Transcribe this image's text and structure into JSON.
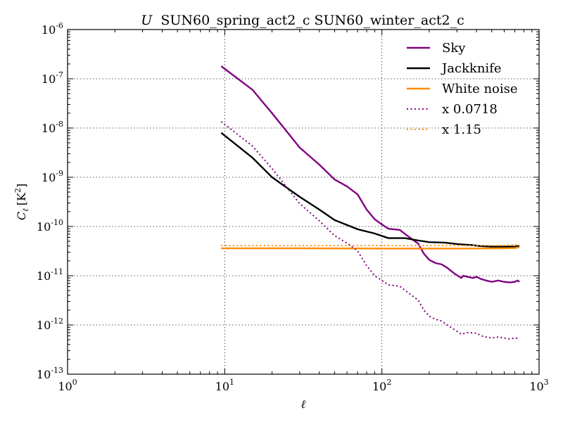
{
  "chart_data": {
    "type": "line",
    "title_var": "U",
    "title": "SUN60_spring_act2_c SUN60_winter_act2_c",
    "xlabel": "ℓ",
    "ylabel": "C",
    "ylabel_sub": "ℓ",
    "ylabel_unit": "[K",
    "ylabel_unit_sup": "2",
    "ylabel_unit_close": "]",
    "xscale": "log",
    "yscale": "log",
    "xlim": [
      1,
      1000
    ],
    "ylim": [
      1e-13,
      1e-06
    ],
    "grid": true,
    "legend_position": "top-right",
    "x_ticks": [
      {
        "value": 1,
        "base": "10",
        "exp": "0"
      },
      {
        "value": 10,
        "base": "10",
        "exp": "1"
      },
      {
        "value": 100,
        "base": "10",
        "exp": "2"
      },
      {
        "value": 1000,
        "base": "10",
        "exp": "3"
      }
    ],
    "y_ticks": [
      {
        "value": 1e-13,
        "base": "10",
        "exp": "-13"
      },
      {
        "value": 1e-12,
        "base": "10",
        "exp": "-12"
      },
      {
        "value": 1e-11,
        "base": "10",
        "exp": "-11"
      },
      {
        "value": 1e-10,
        "base": "10",
        "exp": "-10"
      },
      {
        "value": 1e-09,
        "base": "10",
        "exp": "-9"
      },
      {
        "value": 1e-08,
        "base": "10",
        "exp": "-8"
      },
      {
        "value": 1e-07,
        "base": "10",
        "exp": "-7"
      },
      {
        "value": 1e-06,
        "base": "10",
        "exp": "-6"
      }
    ],
    "series": [
      {
        "name": "Sky",
        "color": "#800080",
        "style": "solid",
        "points": [
          [
            9.5,
            1.8e-07
          ],
          [
            15,
            6e-08
          ],
          [
            20,
            2e-08
          ],
          [
            30,
            4e-09
          ],
          [
            40,
            1.8e-09
          ],
          [
            50,
            9e-10
          ],
          [
            60,
            6.5e-10
          ],
          [
            70,
            4.5e-10
          ],
          [
            80,
            2.2e-10
          ],
          [
            90,
            1.4e-10
          ],
          [
            100,
            1.1e-10
          ],
          [
            110,
            9e-11
          ],
          [
            130,
            8.5e-11
          ],
          [
            150,
            6e-11
          ],
          [
            170,
            4.5e-11
          ],
          [
            185,
            2.8e-11
          ],
          [
            200,
            2.1e-11
          ],
          [
            220,
            1.8e-11
          ],
          [
            240,
            1.7e-11
          ],
          [
            260,
            1.45e-11
          ],
          [
            290,
            1.1e-11
          ],
          [
            320,
            9e-12
          ],
          [
            330,
            1e-11
          ],
          [
            350,
            9.5e-12
          ],
          [
            380,
            9e-12
          ],
          [
            400,
            9.5e-12
          ],
          [
            430,
            8.5e-12
          ],
          [
            460,
            8e-12
          ],
          [
            500,
            7.5e-12
          ],
          [
            550,
            8e-12
          ],
          [
            600,
            7.5e-12
          ],
          [
            650,
            7.3e-12
          ],
          [
            700,
            7.5e-12
          ],
          [
            730,
            8e-12
          ],
          [
            750,
            7.5e-12
          ]
        ]
      },
      {
        "name": "Jackknife",
        "color": "#000000",
        "style": "solid",
        "points": [
          [
            9.5,
            8e-09
          ],
          [
            15,
            2.5e-09
          ],
          [
            20,
            1e-09
          ],
          [
            30,
            4e-10
          ],
          [
            40,
            2.2e-10
          ],
          [
            50,
            1.35e-10
          ],
          [
            70,
            8.8e-11
          ],
          [
            90,
            7.2e-11
          ],
          [
            110,
            5.8e-11
          ],
          [
            140,
            5.8e-11
          ],
          [
            170,
            5.2e-11
          ],
          [
            200,
            4.8e-11
          ],
          [
            250,
            4.7e-11
          ],
          [
            300,
            4.4e-11
          ],
          [
            330,
            4.3e-11
          ],
          [
            370,
            4.2e-11
          ],
          [
            420,
            4e-11
          ],
          [
            500,
            3.9e-11
          ],
          [
            600,
            3.9e-11
          ],
          [
            700,
            3.9e-11
          ],
          [
            750,
            4e-11
          ]
        ]
      },
      {
        "name": "White noise",
        "color": "#ff8c00",
        "style": "solid",
        "points": [
          [
            9.5,
            3.6e-11
          ],
          [
            30,
            3.6e-11
          ],
          [
            100,
            3.55e-11
          ],
          [
            300,
            3.55e-11
          ],
          [
            600,
            3.6e-11
          ],
          [
            700,
            3.65e-11
          ],
          [
            750,
            3.8e-11
          ]
        ]
      },
      {
        "name": "x 0.0718",
        "color": "#800080",
        "style": "dotted",
        "points": [
          [
            9.5,
            1.35e-08
          ],
          [
            15,
            4.3e-09
          ],
          [
            20,
            1.5e-09
          ],
          [
            30,
            2.9e-10
          ],
          [
            40,
            1.3e-10
          ],
          [
            50,
            6.5e-11
          ],
          [
            60,
            4.6e-11
          ],
          [
            70,
            3.2e-11
          ],
          [
            80,
            1.6e-11
          ],
          [
            90,
            1e-11
          ],
          [
            100,
            8e-12
          ],
          [
            110,
            6.5e-12
          ],
          [
            130,
            6.1e-12
          ],
          [
            150,
            4.3e-12
          ],
          [
            170,
            3.2e-12
          ],
          [
            185,
            2e-12
          ],
          [
            200,
            1.5e-12
          ],
          [
            220,
            1.3e-12
          ],
          [
            240,
            1.2e-12
          ],
          [
            260,
            1e-12
          ],
          [
            290,
            8e-13
          ],
          [
            320,
            6.5e-13
          ],
          [
            350,
            7e-13
          ],
          [
            400,
            6.8e-13
          ],
          [
            430,
            6e-13
          ],
          [
            460,
            5.7e-13
          ],
          [
            500,
            5.4e-13
          ],
          [
            550,
            5.7e-13
          ],
          [
            600,
            5.4e-13
          ],
          [
            650,
            5.2e-13
          ],
          [
            700,
            5.4e-13
          ],
          [
            750,
            5.4e-13
          ]
        ]
      },
      {
        "name": "x 1.15",
        "color": "#ff8c00",
        "style": "dotted",
        "points": [
          [
            9.5,
            4.1e-11
          ],
          [
            30,
            4.1e-11
          ],
          [
            100,
            4.1e-11
          ],
          [
            300,
            4.1e-11
          ],
          [
            600,
            4.1e-11
          ],
          [
            750,
            4.3e-11
          ]
        ]
      }
    ]
  }
}
